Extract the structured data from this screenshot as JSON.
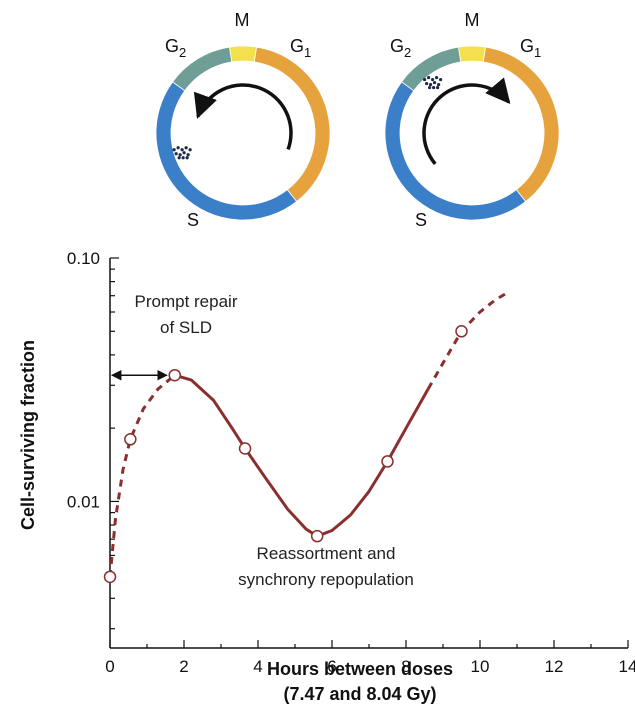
{
  "cell_cycle_diagrams": [
    {
      "phases": [
        {
          "name": "M",
          "sub": "",
          "color": "#f4e04d"
        },
        {
          "name": "G",
          "sub": "1",
          "color": "#e6a23c"
        },
        {
          "name": "S",
          "sub": "",
          "color": "#3a7fc8"
        },
        {
          "name": "G",
          "sub": "2",
          "color": "#6f9e96"
        }
      ],
      "arrow": "counterclockwise",
      "cell_cluster_phase": "S"
    },
    {
      "phases": [
        {
          "name": "M",
          "sub": "",
          "color": "#f4e04d"
        },
        {
          "name": "G",
          "sub": "1",
          "color": "#e6a23c"
        },
        {
          "name": "S",
          "sub": "",
          "color": "#3a7fc8"
        },
        {
          "name": "G",
          "sub": "2",
          "color": "#6f9e96"
        }
      ],
      "arrow": "clockwise",
      "cell_cluster_phase": "G2"
    }
  ],
  "chart_data": {
    "type": "line",
    "x_tick_labels": [
      "0",
      "2",
      "4",
      "6",
      "8",
      "10",
      "12",
      "14"
    ],
    "y_tick_labels": [
      "0.10",
      "0.01"
    ],
    "xlabel_line1": "Hours between doses",
    "xlabel_line2": "(7.47 and 8.04 Gy)",
    "ylabel": "Cell-surviving fraction",
    "xlim": [
      0,
      14
    ],
    "ylim": [
      0.0025,
      0.1
    ],
    "yscale": "log",
    "line_color": "#8b2e2e",
    "series": [
      {
        "points": [
          {
            "x": 0.0,
            "y": 0.0049
          },
          {
            "x": 0.55,
            "y": 0.018
          },
          {
            "x": 1.75,
            "y": 0.033
          },
          {
            "x": 3.65,
            "y": 0.0165
          },
          {
            "x": 5.6,
            "y": 0.0072
          },
          {
            "x": 7.5,
            "y": 0.0146
          },
          {
            "x": 9.5,
            "y": 0.05
          }
        ],
        "curve_dashed_start": [
          {
            "x": 0.0,
            "y": 0.0049
          },
          {
            "x": 0.15,
            "y": 0.0085
          },
          {
            "x": 0.35,
            "y": 0.0135
          },
          {
            "x": 0.55,
            "y": 0.018
          },
          {
            "x": 0.9,
            "y": 0.024
          },
          {
            "x": 1.3,
            "y": 0.029
          },
          {
            "x": 1.75,
            "y": 0.033
          }
        ],
        "curve_solid": [
          {
            "x": 1.75,
            "y": 0.033
          },
          {
            "x": 2.2,
            "y": 0.0315
          },
          {
            "x": 2.8,
            "y": 0.026
          },
          {
            "x": 3.3,
            "y": 0.02
          },
          {
            "x": 3.65,
            "y": 0.0165
          },
          {
            "x": 4.2,
            "y": 0.0125
          },
          {
            "x": 4.8,
            "y": 0.0093
          },
          {
            "x": 5.3,
            "y": 0.0077
          },
          {
            "x": 5.6,
            "y": 0.0072
          },
          {
            "x": 6.0,
            "y": 0.0076
          },
          {
            "x": 6.5,
            "y": 0.0088
          },
          {
            "x": 7.0,
            "y": 0.011
          },
          {
            "x": 7.5,
            "y": 0.0146
          },
          {
            "x": 8.0,
            "y": 0.02
          },
          {
            "x": 8.6,
            "y": 0.029
          }
        ],
        "curve_dashed_end": [
          {
            "x": 8.6,
            "y": 0.029
          },
          {
            "x": 9.0,
            "y": 0.037
          },
          {
            "x": 9.5,
            "y": 0.05
          },
          {
            "x": 10.0,
            "y": 0.06
          },
          {
            "x": 10.4,
            "y": 0.067
          },
          {
            "x": 10.8,
            "y": 0.073
          }
        ]
      }
    ],
    "arrow_range_x": [
      0,
      1.75
    ],
    "arrow_y": 0.033,
    "annotations": [
      {
        "lines": [
          "Prompt repair",
          "of SLD"
        ]
      },
      {
        "lines": [
          "Reassortment and",
          "synchrony repopulation"
        ]
      }
    ]
  }
}
